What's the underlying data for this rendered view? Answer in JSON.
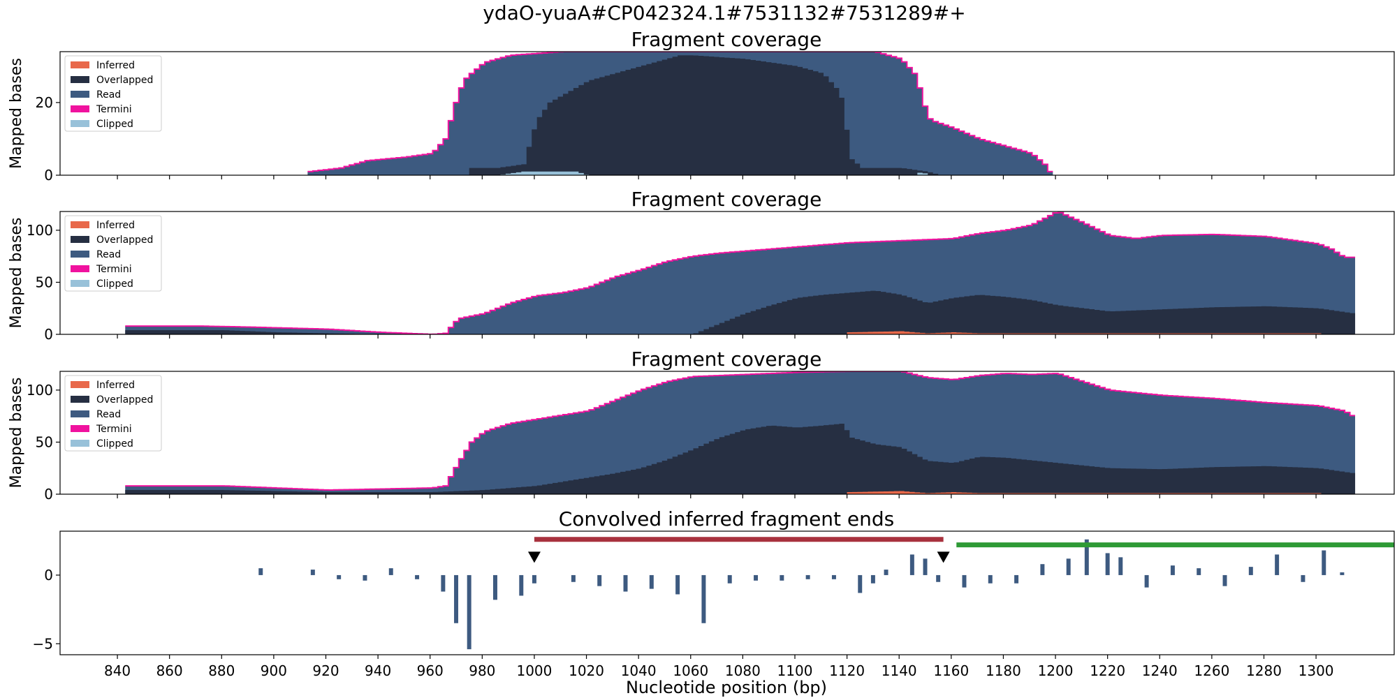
{
  "figure_title": "ydaO-yuaA#CP042324.1#7531132#7531289#+",
  "xlabel": "Nucleotide position (bp)",
  "colors": {
    "inferred": "#e8684a",
    "overlapped": "#262f42",
    "read": "#3d5a80",
    "termini": "#f0129e",
    "clipped": "#98c1d9",
    "bar_red": "#a8323e",
    "bar_green": "#2e9a36"
  },
  "chart_data": [
    {
      "type": "area",
      "title": "Fragment coverage",
      "xlabel": "",
      "ylabel": "Mapped bases",
      "xlim": [
        818,
        1330
      ],
      "ylim": [
        0,
        34
      ],
      "yticks": [
        0,
        20
      ],
      "xticks": [
        840,
        860,
        880,
        900,
        920,
        940,
        960,
        980,
        1000,
        1020,
        1040,
        1060,
        1080,
        1100,
        1120,
        1140,
        1160,
        1180,
        1200,
        1220,
        1240,
        1260,
        1280,
        1300
      ],
      "legend": {
        "placement": "top-left",
        "entries": [
          "Inferred",
          "Overlapped",
          "Read",
          "Termini",
          "Clipped"
        ]
      },
      "series": [
        {
          "name": "Read",
          "x": [
            913,
            925,
            935,
            950,
            960,
            965,
            969,
            972,
            975,
            980,
            985,
            990,
            1000,
            1010,
            1020,
            1040,
            1060,
            1080,
            1100,
            1110,
            1120,
            1130,
            1140,
            1145,
            1148,
            1150,
            1152,
            1160,
            1170,
            1180,
            1190,
            1195,
            1197,
            1198
          ],
          "values": [
            1,
            2,
            4,
            5,
            6,
            10,
            20,
            26,
            28,
            31,
            32,
            33,
            33.5,
            34,
            34,
            34,
            34,
            34,
            34,
            34,
            34,
            34,
            32,
            28,
            22,
            16,
            15,
            13,
            10,
            8,
            6,
            3,
            1,
            0
          ]
        },
        {
          "name": "Overlapped",
          "x": [
            975,
            985,
            995,
            1000,
            1005,
            1010,
            1015,
            1020,
            1030,
            1040,
            1050,
            1055,
            1060,
            1080,
            1090,
            1100,
            1110,
            1115,
            1118,
            1120,
            1125,
            1140,
            1150,
            1155
          ],
          "values": [
            2,
            2,
            3,
            15,
            20,
            22,
            24,
            26,
            28,
            30,
            32,
            33,
            33,
            32,
            31,
            30,
            28,
            24,
            20,
            5,
            2,
            2,
            1,
            0
          ]
        },
        {
          "name": "Clipped",
          "x": [
            985,
            995,
            1005,
            1015,
            1020,
            1145,
            1148,
            1150
          ],
          "values": [
            0,
            1,
            1,
            1,
            0,
            0,
            1,
            0
          ]
        }
      ]
    },
    {
      "type": "area",
      "title": "Fragment coverage",
      "xlabel": "",
      "ylabel": "Mapped bases",
      "xlim": [
        818,
        1330
      ],
      "ylim": [
        0,
        118
      ],
      "yticks": [
        0,
        50,
        100
      ],
      "xticks": [
        840,
        860,
        880,
        900,
        920,
        940,
        960,
        980,
        1000,
        1020,
        1040,
        1060,
        1080,
        1100,
        1120,
        1140,
        1160,
        1180,
        1200,
        1220,
        1240,
        1260,
        1280,
        1300
      ],
      "legend": {
        "placement": "top-left",
        "entries": [
          "Inferred",
          "Overlapped",
          "Read",
          "Termini",
          "Clipped"
        ]
      },
      "series": [
        {
          "name": "Read",
          "x": [
            843,
            870,
            890,
            920,
            940,
            960,
            965,
            970,
            980,
            990,
            1000,
            1010,
            1020,
            1030,
            1040,
            1050,
            1060,
            1070,
            1080,
            1100,
            1120,
            1140,
            1160,
            1170,
            1180,
            1190,
            1200,
            1210,
            1220,
            1230,
            1240,
            1260,
            1280,
            1300,
            1305,
            1310,
            1314
          ],
          "values": [
            8,
            8,
            7,
            5,
            2,
            0,
            1,
            15,
            20,
            30,
            37,
            40,
            45,
            55,
            62,
            70,
            75,
            78,
            80,
            84,
            88,
            90,
            92,
            97,
            100,
            105,
            118,
            107,
            95,
            92,
            95,
            96,
            94,
            87,
            82,
            74,
            74
          ]
        },
        {
          "name": "Overlapped",
          "x": [
            843,
            880,
            900,
            940,
            1060,
            1070,
            1080,
            1090,
            1100,
            1110,
            1120,
            1130,
            1140,
            1150,
            1160,
            1170,
            1180,
            1190,
            1200,
            1220,
            1240,
            1260,
            1280,
            1300,
            1314
          ],
          "values": [
            4,
            4,
            2,
            0,
            0,
            10,
            20,
            28,
            35,
            38,
            40,
            42,
            38,
            30,
            35,
            38,
            36,
            33,
            28,
            22,
            24,
            26,
            27,
            25,
            20
          ]
        },
        {
          "name": "Inferred",
          "x": [
            1120,
            1140,
            1150,
            1160,
            1170,
            1300
          ],
          "values": [
            2,
            3,
            1,
            2,
            1,
            1
          ]
        }
      ]
    },
    {
      "type": "area",
      "title": "Fragment coverage",
      "xlabel": "",
      "ylabel": "Mapped bases",
      "xlim": [
        818,
        1330
      ],
      "ylim": [
        0,
        118
      ],
      "yticks": [
        0,
        50,
        100
      ],
      "xticks": [
        840,
        860,
        880,
        900,
        920,
        940,
        960,
        980,
        1000,
        1020,
        1040,
        1060,
        1080,
        1100,
        1120,
        1140,
        1160,
        1180,
        1200,
        1220,
        1240,
        1260,
        1280,
        1300
      ],
      "legend": {
        "placement": "top-left",
        "entries": [
          "Inferred",
          "Overlapped",
          "Read",
          "Termini",
          "Clipped"
        ]
      },
      "series": [
        {
          "name": "Read",
          "x": [
            843,
            880,
            900,
            920,
            940,
            960,
            965,
            970,
            975,
            980,
            990,
            1000,
            1010,
            1020,
            1030,
            1040,
            1050,
            1060,
            1070,
            1080,
            1100,
            1120,
            1140,
            1150,
            1160,
            1170,
            1180,
            1190,
            1200,
            1210,
            1220,
            1240,
            1260,
            1280,
            1300,
            1310,
            1314
          ],
          "values": [
            8,
            8,
            6,
            4,
            5,
            6,
            8,
            30,
            50,
            60,
            68,
            72,
            76,
            80,
            90,
            100,
            108,
            113,
            114,
            115,
            117,
            118,
            118,
            112,
            110,
            114,
            116,
            115,
            116,
            108,
            100,
            95,
            92,
            88,
            85,
            80,
            74
          ]
        },
        {
          "name": "Overlapped",
          "x": [
            843,
            880,
            920,
            960,
            980,
            1000,
            1010,
            1020,
            1030,
            1040,
            1050,
            1060,
            1070,
            1080,
            1090,
            1100,
            1110,
            1118,
            1120,
            1130,
            1140,
            1150,
            1160,
            1170,
            1180,
            1200,
            1220,
            1240,
            1260,
            1280,
            1300,
            1314
          ],
          "values": [
            4,
            4,
            2,
            2,
            4,
            8,
            12,
            16,
            20,
            25,
            33,
            43,
            54,
            62,
            66,
            64,
            66,
            68,
            55,
            48,
            45,
            32,
            30,
            36,
            35,
            30,
            25,
            24,
            26,
            27,
            25,
            20
          ]
        },
        {
          "name": "Inferred",
          "x": [
            1120,
            1140,
            1150,
            1160,
            1170,
            1300
          ],
          "values": [
            2,
            3,
            1,
            2,
            1,
            1
          ]
        }
      ]
    },
    {
      "type": "bar",
      "title": "Convolved inferred fragment ends",
      "xlabel": "Nucleotide position (bp)",
      "ylabel": "",
      "xlim": [
        818,
        1330
      ],
      "ylim": [
        -5.8,
        3.2
      ],
      "yticks": [
        -5,
        0
      ],
      "xticks": [
        840,
        860,
        880,
        900,
        920,
        940,
        960,
        980,
        1000,
        1020,
        1040,
        1060,
        1080,
        1100,
        1120,
        1140,
        1160,
        1180,
        1200,
        1220,
        1240,
        1260,
        1280,
        1300
      ],
      "x": [
        895,
        915,
        925,
        935,
        945,
        955,
        965,
        970,
        975,
        985,
        995,
        1000,
        1015,
        1025,
        1035,
        1045,
        1055,
        1065,
        1075,
        1085,
        1095,
        1105,
        1115,
        1125,
        1130,
        1135,
        1145,
        1150,
        1155,
        1165,
        1175,
        1185,
        1195,
        1205,
        1212,
        1220,
        1225,
        1235,
        1245,
        1255,
        1265,
        1275,
        1285,
        1295,
        1303,
        1310
      ],
      "values": [
        0.5,
        0.4,
        -0.3,
        -0.4,
        0.5,
        -0.3,
        -1.2,
        -3.5,
        -5.4,
        -1.8,
        -1.5,
        -0.6,
        -0.5,
        -0.8,
        -1.2,
        -1.0,
        -1.4,
        -3.5,
        -0.6,
        -0.4,
        -0.4,
        -0.3,
        -0.3,
        -1.3,
        -0.6,
        0.4,
        1.5,
        1.2,
        -0.5,
        -0.9,
        -0.6,
        -0.6,
        0.8,
        1.2,
        2.6,
        1.6,
        1.3,
        -0.9,
        0.7,
        0.5,
        -0.8,
        0.6,
        1.5,
        -0.5,
        1.8,
        0.2
      ],
      "bars": [
        {
          "x1": 1000,
          "x2": 1157,
          "y": 2.6
        },
        {
          "x1": 1162,
          "x2": 1330,
          "y": 2.2
        }
      ],
      "markers": [
        {
          "x": 1000,
          "y": 1.2
        },
        {
          "x": 1157,
          "y": 1.2
        }
      ]
    }
  ]
}
